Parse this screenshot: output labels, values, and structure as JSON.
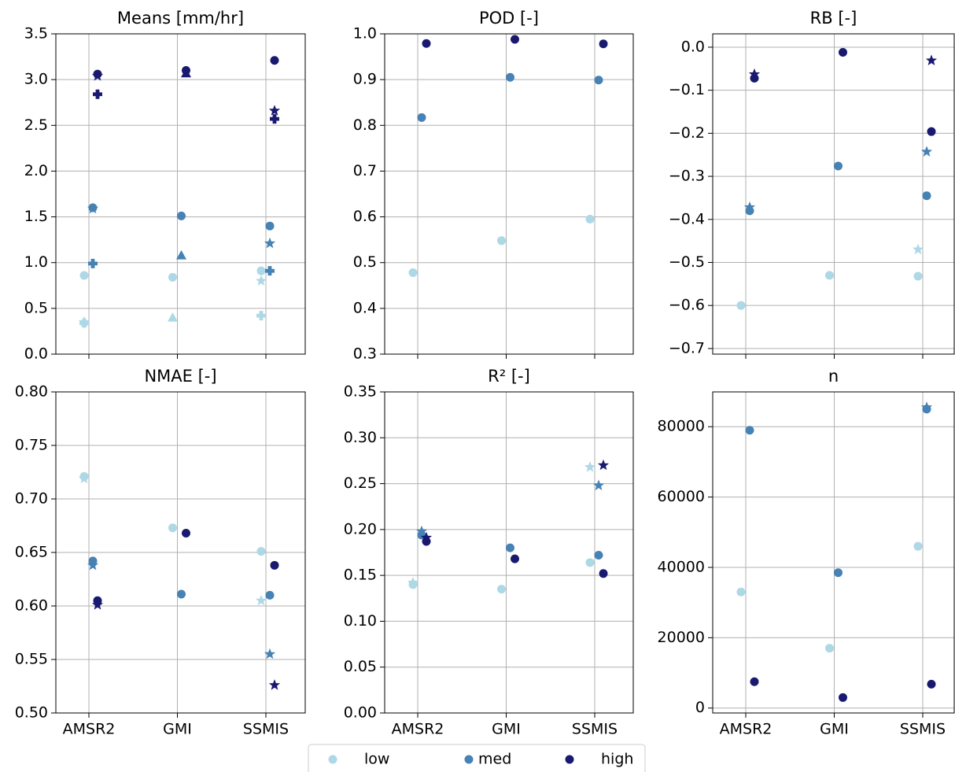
{
  "chart_data": [
    {
      "type": "scatter",
      "title": "Means [mm/hr]",
      "ylim": [
        0,
        3.5
      ],
      "yticks": [
        {
          "value": 0,
          "label": "0.0"
        },
        0.5,
        {
          "value": 1,
          "label": "1.0"
        },
        1.5,
        {
          "value": 2,
          "label": "2.0"
        },
        2.5,
        {
          "value": 3,
          "label": "3.0"
        },
        3.5
      ],
      "grid": true,
      "series": [
        {
          "name": "low",
          "color": "#add8e6",
          "values": [
            0.86,
            0.84,
            0.91
          ],
          "star": [
            0.35,
            null,
            0.8
          ],
          "plus": [
            0.34,
            null,
            0.42
          ],
          "triangle": [
            null,
            0.4,
            null
          ]
        },
        {
          "name": "med",
          "color": "#4682b4",
          "values": [
            1.6,
            1.51,
            1.4
          ],
          "star": [
            1.59,
            null,
            1.21
          ],
          "plus": [
            0.99,
            null,
            0.91
          ],
          "triangle": [
            null,
            1.08,
            null
          ]
        },
        {
          "name": "high",
          "color": "#191970",
          "values": [
            3.06,
            3.1,
            3.21
          ],
          "star": [
            3.04,
            null,
            2.66
          ],
          "plus": [
            2.84,
            null,
            2.57
          ],
          "triangle": [
            null,
            3.07,
            null
          ]
        }
      ]
    },
    {
      "type": "scatter",
      "title": "POD [-]",
      "ylim": [
        0.3,
        1.0
      ],
      "yticks": [
        0.3,
        0.4,
        0.5,
        0.6,
        0.7,
        0.8,
        0.9,
        {
          "value": 1.0,
          "label": "1.0"
        }
      ],
      "grid": true,
      "series": [
        {
          "color": "#add8e6",
          "values": [
            0.478,
            0.548,
            0.595
          ]
        },
        {
          "color": "#4682b4",
          "values": [
            0.817,
            0.905,
            0.899
          ]
        },
        {
          "color": "#191970",
          "values": [
            0.979,
            0.988,
            0.978
          ]
        }
      ]
    },
    {
      "type": "scatter",
      "title": "RB [-]",
      "ylim": [
        -0.713,
        0.031
      ],
      "yticks": [
        {
          "value": 0,
          "label": "0.0"
        },
        {
          "value": -0.1,
          "label": "−0.1"
        },
        {
          "value": -0.2,
          "label": "−0.2"
        },
        {
          "value": -0.3,
          "label": "−0.3"
        },
        {
          "value": -0.4,
          "label": "−0.4"
        },
        {
          "value": -0.5,
          "label": "−0.5"
        },
        {
          "value": -0.6,
          "label": "−0.6"
        },
        {
          "value": -0.7,
          "label": "−0.7"
        }
      ],
      "grid": true,
      "series": [
        {
          "color": "#add8e6",
          "values": [
            -0.6,
            -0.53,
            -0.532
          ],
          "star": [
            null,
            null,
            -0.47
          ]
        },
        {
          "color": "#4682b4",
          "values": [
            -0.38,
            -0.276,
            -0.345
          ],
          "star": [
            -0.372,
            null,
            -0.243
          ]
        },
        {
          "color": "#191970",
          "values": [
            -0.072,
            -0.012,
            -0.196
          ],
          "star": [
            -0.063,
            null,
            -0.031
          ]
        }
      ]
    },
    {
      "type": "scatter",
      "title": "NMAE [-]",
      "categories": [
        "AMSR2",
        "GMI",
        "SSMIS"
      ],
      "ylim": [
        0.5,
        0.8
      ],
      "yticks": [
        {
          "value": 0.5,
          "label": "0.50"
        },
        0.55,
        {
          "value": 0.6,
          "label": "0.60"
        },
        0.65,
        {
          "value": 0.7,
          "label": "0.70"
        },
        0.75,
        {
          "value": 0.8,
          "label": "0.80"
        }
      ],
      "grid": true,
      "series": [
        {
          "color": "#add8e6",
          "values": [
            0.721,
            0.673,
            0.651
          ],
          "star": [
            0.719,
            null,
            0.605
          ]
        },
        {
          "color": "#4682b4",
          "values": [
            0.642,
            0.611,
            0.61
          ],
          "star": [
            0.638,
            null,
            0.555
          ]
        },
        {
          "color": "#191970",
          "values": [
            0.605,
            0.668,
            0.638
          ],
          "star": [
            0.601,
            null,
            0.526
          ]
        }
      ]
    },
    {
      "type": "scatter",
      "title": "R² [-]",
      "categories": [
        "AMSR2",
        "GMI",
        "SSMIS"
      ],
      "ylim": [
        0,
        0.35
      ],
      "yticks": [
        {
          "value": 0,
          "label": "0.00"
        },
        0.05,
        {
          "value": 0.1,
          "label": "0.10"
        },
        0.15,
        {
          "value": 0.2,
          "label": "0.20"
        },
        0.25,
        {
          "value": 0.3,
          "label": "0.30"
        },
        0.35
      ],
      "grid": true,
      "series": [
        {
          "color": "#add8e6",
          "values": [
            0.14,
            0.135,
            0.164
          ],
          "star": [
            0.142,
            null,
            0.268
          ]
        },
        {
          "color": "#4682b4",
          "values": [
            0.194,
            0.18,
            0.172
          ],
          "star": [
            0.198,
            null,
            0.248
          ]
        },
        {
          "color": "#191970",
          "values": [
            0.187,
            0.168,
            0.152
          ],
          "star": [
            0.191,
            null,
            0.27
          ]
        }
      ]
    },
    {
      "type": "scatter",
      "title": "n",
      "categories": [
        "AMSR2",
        "GMI",
        "SSMIS"
      ],
      "ylim": [
        -1400,
        89900
      ],
      "yticks": [
        0,
        20000,
        40000,
        60000,
        80000
      ],
      "grid": true,
      "series": [
        {
          "color": "#add8e6",
          "values": [
            33000,
            17000,
            46000
          ]
        },
        {
          "color": "#4682b4",
          "values": [
            79000,
            38500,
            85000
          ],
          "star": [
            null,
            null,
            85500
          ]
        },
        {
          "color": "#191970",
          "values": [
            7500,
            3000,
            6800
          ]
        }
      ]
    }
  ]
}
